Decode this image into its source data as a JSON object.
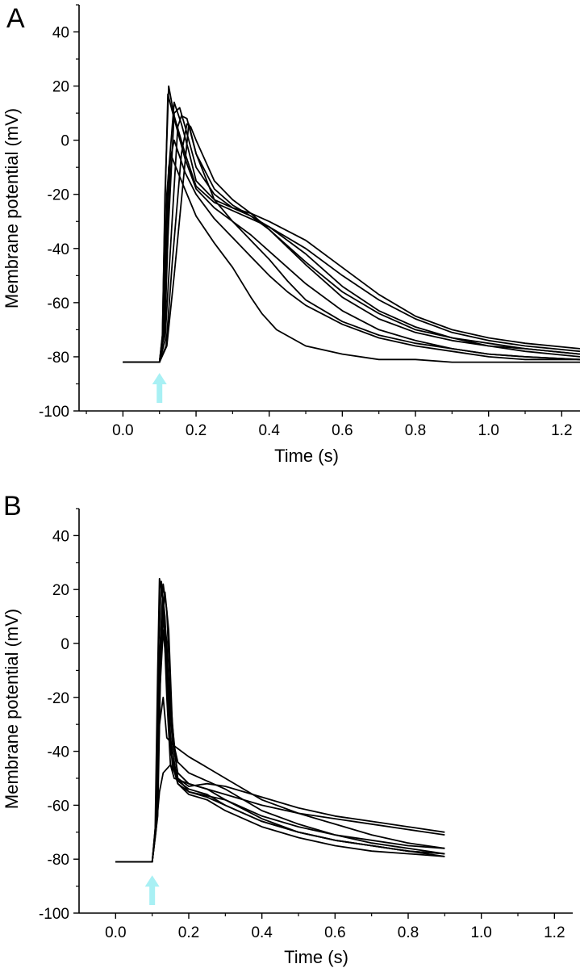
{
  "figure": {
    "panels": [
      "A",
      "B"
    ],
    "stimulus_marker_color": "#a8f0f4",
    "trace_color": "#000000"
  },
  "chart_data": [
    {
      "panel": "A",
      "type": "line",
      "xlabel": "Time (s)",
      "ylabel": "Membrane potential (mV)",
      "xlim": [
        -0.12,
        1.25
      ],
      "ylim": [
        -100,
        50
      ],
      "xticks": [
        "0.0",
        "0.2",
        "0.4",
        "0.6",
        "0.8",
        "1.0",
        "1.2"
      ],
      "yticks": [
        "-100",
        "-80",
        "-60",
        "-40",
        "-20",
        "0",
        "20",
        "40"
      ],
      "stimulus_time": 0.1,
      "grid": false,
      "series": [
        {
          "x": [
            0,
            0.1,
            0.108,
            0.115,
            0.123,
            0.14,
            0.17,
            0.2,
            0.25,
            0.3,
            0.35,
            0.4,
            0.5,
            0.6,
            0.7,
            0.8,
            0.9,
            1.0,
            1.1,
            1.25
          ],
          "y": [
            -82,
            -82,
            -72,
            -25,
            17,
            8,
            -7,
            -18,
            -25,
            -30,
            -35,
            -41,
            -53,
            -63,
            -70,
            -74,
            -77,
            -79,
            -80,
            -81
          ]
        },
        {
          "x": [
            0,
            0.1,
            0.108,
            0.115,
            0.125,
            0.14,
            0.17,
            0.2,
            0.25,
            0.3,
            0.35,
            0.4,
            0.5,
            0.6,
            0.7,
            0.8,
            0.9,
            1.0,
            1.1,
            1.25
          ],
          "y": [
            -82,
            -82,
            -74,
            -20,
            20,
            9,
            -5,
            -17,
            -23,
            -26,
            -29,
            -32,
            -40,
            -50,
            -59,
            -66,
            -71,
            -74,
            -76,
            -78
          ]
        },
        {
          "x": [
            0,
            0.1,
            0.11,
            0.12,
            0.14,
            0.16,
            0.18,
            0.2,
            0.25,
            0.3,
            0.35,
            0.4,
            0.5,
            0.6,
            0.7,
            0.8,
            0.9,
            1.0,
            1.1,
            1.25
          ],
          "y": [
            -82,
            -82,
            -70,
            -20,
            14,
            6,
            -4,
            -15,
            -22,
            -25,
            -27,
            -30,
            -37,
            -47,
            -57,
            -65,
            -70,
            -73,
            -75,
            -77
          ]
        },
        {
          "x": [
            0,
            0.1,
            0.112,
            0.125,
            0.14,
            0.155,
            0.17,
            0.2,
            0.25,
            0.3,
            0.35,
            0.4,
            0.5,
            0.6,
            0.7,
            0.8,
            0.9,
            1.0,
            1.1,
            1.25
          ],
          "y": [
            -82,
            -82,
            -72,
            -30,
            10,
            12,
            5,
            -10,
            -20,
            -25,
            -28,
            -32,
            -42,
            -54,
            -63,
            -69,
            -73,
            -75,
            -77,
            -79
          ]
        },
        {
          "x": [
            0,
            0.1,
            0.115,
            0.13,
            0.15,
            0.16,
            0.175,
            0.2,
            0.25,
            0.3,
            0.35,
            0.4,
            0.5,
            0.6,
            0.7,
            0.8,
            0.9,
            1.0,
            1.1,
            1.25
          ],
          "y": [
            -82,
            -82,
            -74,
            -40,
            5,
            9,
            8,
            -5,
            -18,
            -24,
            -28,
            -33,
            -45,
            -56,
            -64,
            -70,
            -73,
            -76,
            -77,
            -79
          ]
        },
        {
          "x": [
            0,
            0.1,
            0.118,
            0.135,
            0.16,
            0.175,
            0.185,
            0.2,
            0.25,
            0.3,
            0.35,
            0.4,
            0.5,
            0.6,
            0.7,
            0.8,
            0.9,
            1.0,
            1.1,
            1.25
          ],
          "y": [
            -82,
            -82,
            -76,
            -45,
            -5,
            6,
            5,
            0,
            -15,
            -22,
            -27,
            -33,
            -46,
            -58,
            -66,
            -71,
            -74,
            -76,
            -78,
            -80
          ]
        },
        {
          "x": [
            0,
            0.1,
            0.12,
            0.14,
            0.165,
            0.18,
            0.2,
            0.25,
            0.3,
            0.35,
            0.4,
            0.45,
            0.5,
            0.6,
            0.7,
            0.8,
            0.9,
            1.0,
            1.1,
            1.25
          ],
          "y": [
            -82,
            -82,
            -76,
            -50,
            -15,
            6,
            -5,
            -22,
            -30,
            -37,
            -44,
            -52,
            -59,
            -67,
            -72,
            -75,
            -77,
            -79,
            -80,
            -81
          ]
        },
        {
          "x": [
            0,
            0.1,
            0.112,
            0.125,
            0.14,
            0.17,
            0.2,
            0.25,
            0.3,
            0.35,
            0.4,
            0.45,
            0.5,
            0.6,
            0.7,
            0.8,
            0.9,
            1.0,
            1.1,
            1.25
          ],
          "y": [
            -82,
            -82,
            -70,
            -10,
            0,
            -12,
            -20,
            -29,
            -36,
            -43,
            -50,
            -56,
            -61,
            -68,
            -73,
            -76,
            -78,
            -80,
            -81,
            -81
          ]
        },
        {
          "x": [
            0,
            0.1,
            0.115,
            0.13,
            0.16,
            0.2,
            0.25,
            0.3,
            0.35,
            0.38,
            0.42,
            0.5,
            0.6,
            0.7,
            0.8,
            0.9,
            1.0,
            1.1,
            1.25
          ],
          "y": [
            -82,
            -82,
            -70,
            -5,
            -15,
            -28,
            -38,
            -47,
            -58,
            -64,
            -70,
            -76,
            -79,
            -81,
            -81,
            -82,
            -82,
            -82,
            -82
          ]
        }
      ]
    },
    {
      "panel": "B",
      "type": "line",
      "xlabel": "Time (s)",
      "ylabel": "Membrane potential (mV)",
      "xlim": [
        -0.1,
        1.25
      ],
      "ylim": [
        -100,
        50
      ],
      "xticks": [
        "0.0",
        "0.2",
        "0.4",
        "0.6",
        "0.8",
        "1.0",
        "1.2"
      ],
      "yticks": [
        "-100",
        "-80",
        "-60",
        "-40",
        "-20",
        "0",
        "20",
        "40"
      ],
      "stimulus_time": 0.1,
      "grid": false,
      "series": [
        {
          "x": [
            0,
            0.1,
            0.108,
            0.115,
            0.12,
            0.13,
            0.14,
            0.15,
            0.16,
            0.2,
            0.3,
            0.4,
            0.5,
            0.6,
            0.7,
            0.8,
            0.9
          ],
          "y": [
            -81,
            -81,
            -70,
            -10,
            24,
            15,
            -20,
            -45,
            -50,
            -52,
            -56,
            -60,
            -63,
            -65,
            -67,
            -69,
            -71
          ]
        },
        {
          "x": [
            0,
            0.1,
            0.11,
            0.118,
            0.125,
            0.135,
            0.145,
            0.155,
            0.17,
            0.2,
            0.3,
            0.4,
            0.5,
            0.6,
            0.7,
            0.8,
            0.9
          ],
          "y": [
            -81,
            -81,
            -68,
            0,
            23,
            10,
            -25,
            -45,
            -52,
            -55,
            -58,
            -64,
            -68,
            -71,
            -73,
            -75,
            -76
          ]
        },
        {
          "x": [
            0,
            0.1,
            0.112,
            0.12,
            0.13,
            0.14,
            0.15,
            0.16,
            0.17,
            0.2,
            0.3,
            0.4,
            0.5,
            0.6,
            0.7,
            0.8,
            0.9
          ],
          "y": [
            -81,
            -81,
            -66,
            -5,
            22,
            12,
            -20,
            -38,
            -44,
            -48,
            -54,
            -62,
            -67,
            -71,
            -74,
            -76,
            -78
          ]
        },
        {
          "x": [
            0,
            0.1,
            0.115,
            0.125,
            0.135,
            0.145,
            0.155,
            0.17,
            0.2,
            0.25,
            0.3,
            0.4,
            0.5,
            0.6,
            0.7,
            0.8,
            0.9
          ],
          "y": [
            -81,
            -81,
            -64,
            5,
            19,
            5,
            -30,
            -50,
            -53,
            -52,
            -53,
            -57,
            -61,
            -64,
            -66,
            -68,
            -70
          ]
        },
        {
          "x": [
            0,
            0.1,
            0.11,
            0.12,
            0.13,
            0.14,
            0.15,
            0.17,
            0.2,
            0.25,
            0.3,
            0.4,
            0.5,
            0.6,
            0.7,
            0.8,
            0.9
          ],
          "y": [
            -81,
            -81,
            -66,
            -10,
            14,
            0,
            -35,
            -52,
            -56,
            -58,
            -62,
            -68,
            -72,
            -75,
            -77,
            -78,
            -79
          ]
        },
        {
          "x": [
            0,
            0.1,
            0.11,
            0.12,
            0.13,
            0.14,
            0.155,
            0.17,
            0.2,
            0.25,
            0.3,
            0.4,
            0.5,
            0.6,
            0.7,
            0.8,
            0.9
          ],
          "y": [
            -81,
            -81,
            -66,
            -15,
            10,
            -5,
            -36,
            -48,
            -52,
            -54,
            -58,
            -65,
            -70,
            -73,
            -75,
            -77,
            -78
          ]
        },
        {
          "x": [
            0,
            0.1,
            0.11,
            0.12,
            0.13,
            0.14,
            0.16,
            0.2,
            0.25,
            0.3,
            0.35,
            0.4,
            0.5,
            0.6,
            0.7,
            0.8,
            0.9
          ],
          "y": [
            -81,
            -81,
            -68,
            -30,
            -20,
            -35,
            -38,
            -42,
            -46,
            -50,
            -54,
            -58,
            -63,
            -67,
            -71,
            -74,
            -76
          ]
        },
        {
          "x": [
            0,
            0.1,
            0.11,
            0.12,
            0.13,
            0.15,
            0.17,
            0.2,
            0.25,
            0.3,
            0.35,
            0.4,
            0.5,
            0.6,
            0.7,
            0.8,
            0.9
          ],
          "y": [
            -81,
            -81,
            -70,
            -55,
            -48,
            -45,
            -50,
            -55,
            -57,
            -60,
            -63,
            -66,
            -70,
            -73,
            -75,
            -77,
            -79
          ]
        },
        {
          "x": [
            0,
            0.1,
            0.11,
            0.12,
            0.13,
            0.14,
            0.15,
            0.17,
            0.2,
            0.25,
            0.3,
            0.4,
            0.5,
            0.6,
            0.7,
            0.8,
            0.9
          ],
          "y": [
            -81,
            -81,
            -69,
            -20,
            5,
            -10,
            -40,
            -51,
            -54,
            -56,
            -60,
            -66,
            -70,
            -73,
            -75,
            -77,
            -78
          ]
        }
      ]
    }
  ]
}
